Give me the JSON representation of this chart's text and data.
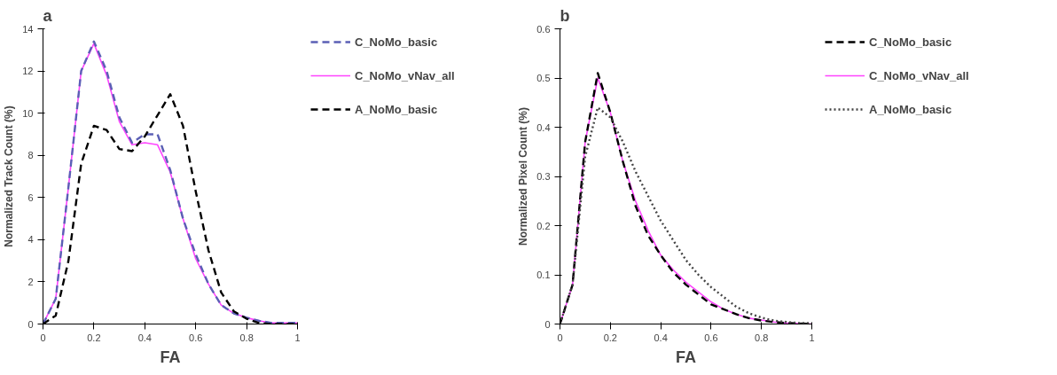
{
  "chart_data": [
    {
      "type": "line",
      "title": "a",
      "xlabel": "FA",
      "ylabel": "Normalized Track Count (%)",
      "x": [
        0,
        0.05,
        0.1,
        0.15,
        0.2,
        0.25,
        0.3,
        0.35,
        0.4,
        0.45,
        0.5,
        0.55,
        0.6,
        0.65,
        0.7,
        0.75,
        0.8,
        0.85,
        0.9,
        0.95,
        1
      ],
      "series": [
        {
          "name": "C_NoMo_basic",
          "color": "#5b5fb5",
          "line_style": "dashed",
          "values": [
            0,
            1.2,
            6.5,
            12.0,
            13.4,
            12.0,
            9.8,
            8.6,
            9.0,
            9.0,
            7.3,
            5.0,
            3.3,
            1.9,
            0.9,
            0.5,
            0.3,
            0.15,
            0.05,
            0.05,
            0.05
          ]
        },
        {
          "name": "C_NoMo_vNav_all",
          "color": "#ff44ff",
          "line_style": "solid",
          "values": [
            0,
            1.2,
            6.5,
            12.0,
            13.3,
            11.8,
            9.6,
            8.5,
            8.6,
            8.5,
            7.2,
            5.0,
            3.1,
            1.9,
            0.9,
            0.5,
            0.3,
            0.15,
            0.05,
            0.05,
            0.05
          ]
        },
        {
          "name": "A_NoMo_basic",
          "color": "#000000",
          "line_style": "dashed",
          "values": [
            0,
            0.4,
            3.0,
            7.6,
            9.4,
            9.2,
            8.3,
            8.2,
            8.9,
            9.9,
            10.9,
            9.4,
            6.3,
            3.5,
            1.5,
            0.6,
            0.25,
            0.05,
            0,
            0,
            0
          ]
        }
      ],
      "xlim": [
        0,
        1
      ],
      "xticks": [
        0,
        0.2,
        0.4,
        0.6,
        0.8,
        1
      ],
      "ylim": [
        0,
        14
      ],
      "yticks": [
        0,
        2,
        4,
        6,
        8,
        10,
        12,
        14
      ],
      "grid": false,
      "legend": "right",
      "marker": "none"
    },
    {
      "type": "line",
      "title": "b",
      "xlabel": "FA",
      "ylabel": "Normalized Pixel Count (%)",
      "x": [
        0,
        0.05,
        0.1,
        0.15,
        0.2,
        0.25,
        0.3,
        0.35,
        0.4,
        0.45,
        0.5,
        0.55,
        0.6,
        0.65,
        0.7,
        0.75,
        0.8,
        0.85,
        0.9,
        0.95,
        1
      ],
      "series": [
        {
          "name": "C_NoMo_basic",
          "color": "#000000",
          "line_style": "dashed",
          "values": [
            0,
            0.08,
            0.37,
            0.51,
            0.43,
            0.33,
            0.24,
            0.18,
            0.14,
            0.105,
            0.08,
            0.06,
            0.04,
            0.03,
            0.02,
            0.012,
            0.007,
            0.004,
            0.002,
            0.001,
            0
          ]
        },
        {
          "name": "C_NoMo_vNav_all",
          "color": "#ff44ff",
          "line_style": "solid",
          "values": [
            0,
            0.08,
            0.37,
            0.5,
            0.43,
            0.33,
            0.25,
            0.19,
            0.14,
            0.11,
            0.085,
            0.065,
            0.045,
            0.03,
            0.02,
            0.012,
            0.008,
            0.004,
            0.002,
            0.001,
            0
          ]
        },
        {
          "name": "A_NoMo_basic",
          "color": "#444444",
          "line_style": "dotted",
          "values": [
            0,
            0.08,
            0.34,
            0.44,
            0.42,
            0.37,
            0.31,
            0.26,
            0.21,
            0.17,
            0.13,
            0.1,
            0.075,
            0.055,
            0.035,
            0.022,
            0.013,
            0.007,
            0.004,
            0.002,
            0.002
          ]
        }
      ],
      "xlim": [
        0,
        1
      ],
      "xticks": [
        0,
        0.2,
        0.4,
        0.6,
        0.8,
        1
      ],
      "ylim": [
        0,
        0.6
      ],
      "yticks": [
        0,
        0.1,
        0.2,
        0.3,
        0.4,
        0.5,
        0.6
      ],
      "grid": false,
      "legend": "right",
      "marker": "none"
    }
  ]
}
